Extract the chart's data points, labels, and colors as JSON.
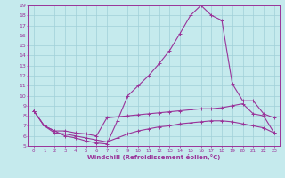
{
  "xlabel": "Windchill (Refroidissement éolien,°C)",
  "background_color": "#c5eaed",
  "grid_color": "#a0d0d8",
  "line_color": "#993399",
  "x_values": [
    0,
    1,
    2,
    3,
    4,
    5,
    6,
    7,
    8,
    9,
    10,
    11,
    12,
    13,
    14,
    15,
    16,
    17,
    18,
    19,
    20,
    21,
    22,
    23
  ],
  "line1_y": [
    8.5,
    7.0,
    6.5,
    6.0,
    5.8,
    5.5,
    5.3,
    5.2,
    7.5,
    10.0,
    11.0,
    12.0,
    13.2,
    14.5,
    16.2,
    18.0,
    19.0,
    18.0,
    17.5,
    11.2,
    9.5,
    9.5,
    8.2,
    7.8
  ],
  "line2_y": [
    8.5,
    7.0,
    6.5,
    6.5,
    6.3,
    6.2,
    6.0,
    7.8,
    7.9,
    8.0,
    8.1,
    8.2,
    8.3,
    8.4,
    8.5,
    8.6,
    8.7,
    8.7,
    8.8,
    9.0,
    9.2,
    8.2,
    8.0,
    6.3
  ],
  "line3_y": [
    8.5,
    7.0,
    6.3,
    6.2,
    6.0,
    5.8,
    5.6,
    5.4,
    5.8,
    6.2,
    6.5,
    6.7,
    6.9,
    7.0,
    7.2,
    7.3,
    7.4,
    7.5,
    7.5,
    7.4,
    7.2,
    7.0,
    6.8,
    6.3
  ],
  "ylim": [
    5,
    19
  ],
  "xlim": [
    -0.5,
    23.5
  ],
  "yticks": [
    5,
    6,
    7,
    8,
    9,
    10,
    11,
    12,
    13,
    14,
    15,
    16,
    17,
    18,
    19
  ],
  "xticks": [
    0,
    1,
    2,
    3,
    4,
    5,
    6,
    7,
    8,
    9,
    10,
    11,
    12,
    13,
    14,
    15,
    16,
    17,
    18,
    19,
    20,
    21,
    22,
    23
  ]
}
